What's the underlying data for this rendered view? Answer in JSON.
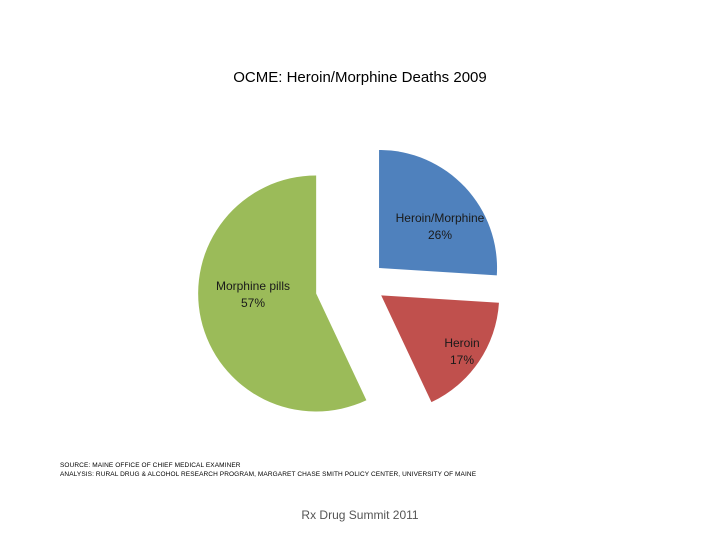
{
  "chart_data": {
    "type": "pie",
    "title": "OCME: Heroin/Morphine Deaths 2009",
    "categories": [
      "Heroin/Morphine",
      "Heroin",
      "Morphine pills"
    ],
    "values": [
      26,
      17,
      57
    ],
    "value_labels": [
      "26%",
      "17%",
      "57%"
    ],
    "colors": [
      "#4f81bd",
      "#c0504d",
      "#9bbb59"
    ],
    "exploded": true,
    "legend": "none"
  },
  "source": {
    "line1": "SOURCE: MAINE OFFICE OF CHIEF MEDICAL EXAMINER",
    "line2": "ANALYSIS: RURAL DRUG & ALCOHOL RESEARCH PROGRAM, MARGARET CHASE SMITH POLICY CENTER, UNIVERSITY OF MAINE"
  },
  "footer": "Rx Drug Summit 2011"
}
